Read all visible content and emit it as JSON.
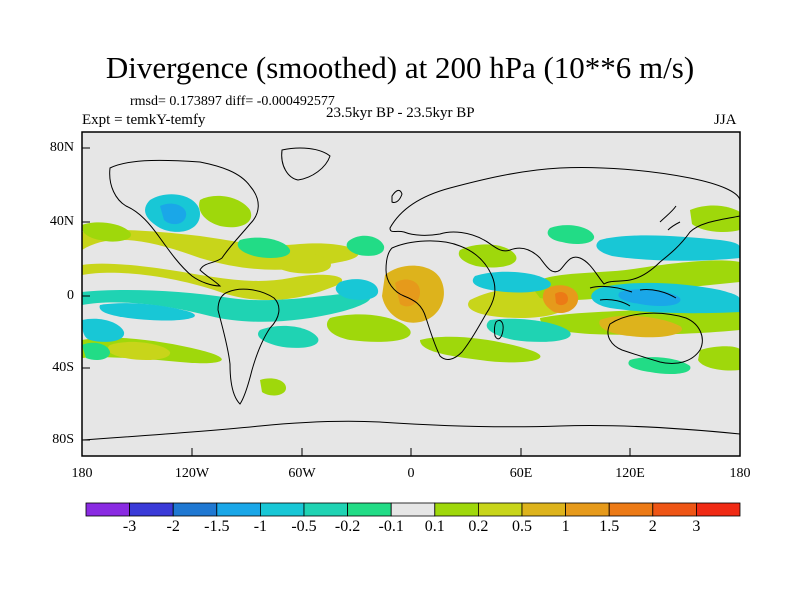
{
  "title": "Divergence (smoothed) at 200 hPa (10**6 m/s)",
  "stats": "rmsd= 0.173897 diff= -0.000492577",
  "experiment": "Expt = temkY-temfy",
  "period": "23.5kyr BP - 23.5kyr BP",
  "season": "JJA",
  "axes": {
    "lat_labels": [
      "80N",
      "40N",
      "0",
      "40S",
      "80S"
    ],
    "lon_labels": [
      "180",
      "120W",
      "60W",
      "0",
      "60E",
      "120E",
      "180"
    ]
  },
  "colorbar": {
    "labels": [
      "-3",
      "-2",
      "-1.5",
      "-1",
      "-0.5",
      "-0.2",
      "-0.1",
      "0.1",
      "0.2",
      "0.5",
      "1",
      "1.5",
      "2",
      "3"
    ],
    "colors": [
      "#8a2be2",
      "#3a3ad8",
      "#1f78d2",
      "#1aa7e8",
      "#18c7d6",
      "#1fd3b3",
      "#22dc86",
      "#e6e6e6",
      "#9fd80b",
      "#c8d51a",
      "#ddb31c",
      "#e69a1b",
      "#ec7a16",
      "#ee5515",
      "#f02a14"
    ]
  },
  "colors": {
    "background": "#e6e6e6",
    "land_outline": "#000000",
    "positive_light": "#9fd80b",
    "positive_mid": "#c8d51a",
    "positive_strong": "#ddb31c",
    "positive_max": "#e69a1b",
    "negative_light": "#22dc86",
    "negative_mid": "#1fd3b3",
    "negative_strong": "#18c7d6",
    "negative_max": "#1aa7e8"
  }
}
